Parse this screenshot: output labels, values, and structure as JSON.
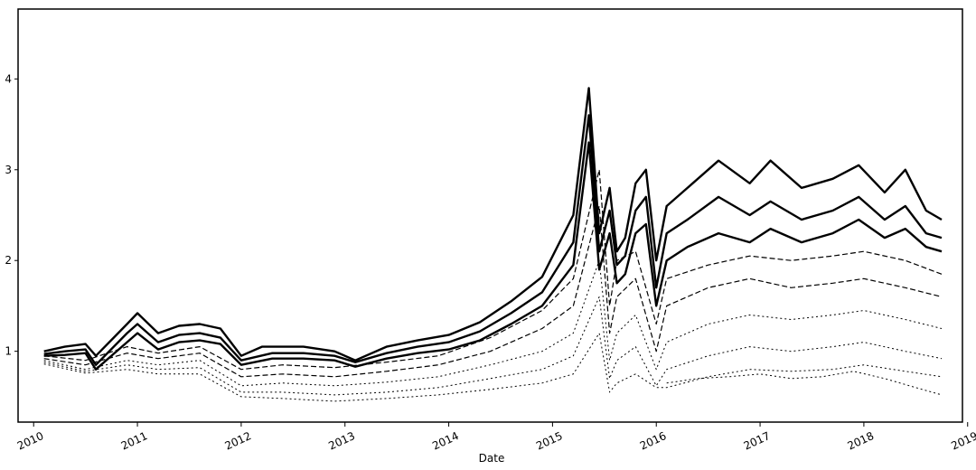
{
  "chart_data": {
    "type": "line",
    "title": "",
    "xlabel": "Date",
    "ylabel": "",
    "xlim": [
      2009.85,
      2018.95
    ],
    "ylim": [
      0.22,
      4.77
    ],
    "x_ticks": [
      "2010",
      "2011",
      "2012",
      "2013",
      "2014",
      "2015",
      "2016",
      "2017",
      "2018",
      "2019"
    ],
    "y_ticks": [
      "1",
      "2",
      "3",
      "4"
    ],
    "grid": false,
    "legend": "none",
    "line_color": "#000000",
    "series": [
      {
        "style": "bold",
        "x": [
          2010.1,
          2010.3,
          2010.5,
          2010.6,
          2010.9,
          2011.0,
          2011.2,
          2011.4,
          2011.6,
          2011.8,
          2012.0,
          2012.2,
          2012.4,
          2012.6,
          2012.9,
          2013.1,
          2013.4,
          2013.7,
          2014.0,
          2014.3,
          2014.6,
          2014.9,
          2015.2,
          2015.35,
          2015.45,
          2015.55,
          2015.62,
          2015.7,
          2015.8,
          2015.9,
          2016.0,
          2016.1,
          2016.3,
          2016.6,
          2016.9,
          2017.1,
          2017.4,
          2017.7,
          2017.95,
          2018.2,
          2018.4,
          2018.6,
          2018.75
        ],
        "values": [
          1.0,
          1.05,
          1.08,
          0.95,
          1.3,
          1.42,
          1.2,
          1.28,
          1.3,
          1.25,
          0.95,
          1.05,
          1.05,
          1.05,
          1.0,
          0.9,
          1.05,
          1.12,
          1.18,
          1.32,
          1.55,
          1.82,
          2.5,
          3.9,
          2.3,
          2.8,
          2.1,
          2.25,
          2.85,
          3.0,
          2.0,
          2.6,
          2.8,
          3.1,
          2.85,
          3.1,
          2.8,
          2.9,
          3.05,
          2.75,
          3.0,
          2.55,
          2.45
        ]
      },
      {
        "style": "bold",
        "x": [
          2010.1,
          2010.3,
          2010.5,
          2010.6,
          2010.9,
          2011.0,
          2011.2,
          2011.4,
          2011.6,
          2011.8,
          2012.0,
          2012.3,
          2012.6,
          2012.9,
          2013.1,
          2013.4,
          2013.7,
          2014.0,
          2014.3,
          2014.6,
          2014.9,
          2015.2,
          2015.35,
          2015.45,
          2015.55,
          2015.62,
          2015.7,
          2015.8,
          2015.9,
          2016.0,
          2016.1,
          2016.3,
          2016.6,
          2016.9,
          2017.1,
          2017.4,
          2017.7,
          2017.95,
          2018.2,
          2018.4,
          2018.6,
          2018.75
        ],
        "values": [
          0.97,
          1.0,
          1.02,
          0.85,
          1.2,
          1.3,
          1.1,
          1.18,
          1.2,
          1.15,
          0.9,
          0.98,
          0.98,
          0.95,
          0.88,
          0.98,
          1.05,
          1.1,
          1.22,
          1.42,
          1.65,
          2.2,
          3.6,
          2.1,
          2.55,
          1.95,
          2.05,
          2.55,
          2.7,
          1.7,
          2.3,
          2.45,
          2.7,
          2.5,
          2.65,
          2.45,
          2.55,
          2.7,
          2.45,
          2.6,
          2.3,
          2.25
        ]
      },
      {
        "style": "bold",
        "x": [
          2010.1,
          2010.3,
          2010.5,
          2010.6,
          2010.9,
          2011.0,
          2011.2,
          2011.4,
          2011.6,
          2011.8,
          2012.0,
          2012.3,
          2012.6,
          2012.9,
          2013.1,
          2013.4,
          2013.7,
          2014.0,
          2014.3,
          2014.6,
          2014.9,
          2015.2,
          2015.35,
          2015.45,
          2015.55,
          2015.62,
          2015.7,
          2015.8,
          2015.9,
          2016.0,
          2016.1,
          2016.3,
          2016.6,
          2016.9,
          2017.1,
          2017.4,
          2017.7,
          2017.95,
          2018.2,
          2018.4,
          2018.6,
          2018.75
        ],
        "values": [
          0.95,
          0.96,
          0.98,
          0.8,
          1.1,
          1.2,
          1.02,
          1.1,
          1.12,
          1.08,
          0.85,
          0.92,
          0.92,
          0.9,
          0.83,
          0.92,
          0.98,
          1.02,
          1.12,
          1.3,
          1.5,
          1.95,
          3.3,
          1.9,
          2.3,
          1.75,
          1.85,
          2.3,
          2.4,
          1.5,
          2.0,
          2.15,
          2.3,
          2.2,
          2.35,
          2.2,
          2.3,
          2.45,
          2.25,
          2.35,
          2.15,
          2.1
        ]
      },
      {
        "style": "dashed",
        "x": [
          2010.1,
          2010.5,
          2010.9,
          2011.2,
          2011.6,
          2012.0,
          2012.4,
          2012.9,
          2013.4,
          2013.9,
          2014.4,
          2014.9,
          2015.2,
          2015.45,
          2015.55,
          2015.62,
          2015.8,
          2016.0,
          2016.1,
          2016.5,
          2016.9,
          2017.3,
          2017.7,
          2018.0,
          2018.4,
          2018.75
        ],
        "values": [
          0.95,
          0.9,
          1.05,
          0.98,
          1.05,
          0.8,
          0.85,
          0.82,
          0.88,
          0.95,
          1.15,
          1.45,
          1.8,
          3.0,
          1.5,
          2.0,
          2.1,
          1.3,
          1.8,
          1.95,
          2.05,
          2.0,
          2.05,
          2.1,
          2.0,
          1.85
        ]
      },
      {
        "style": "dashed",
        "x": [
          2010.1,
          2010.5,
          2010.9,
          2011.2,
          2011.6,
          2012.0,
          2012.4,
          2012.9,
          2013.4,
          2013.9,
          2014.4,
          2014.9,
          2015.2,
          2015.45,
          2015.55,
          2015.62,
          2015.8,
          2016.0,
          2016.1,
          2016.5,
          2016.9,
          2017.3,
          2017.7,
          2018.0,
          2018.4,
          2018.75
        ],
        "values": [
          0.92,
          0.85,
          0.98,
          0.92,
          0.98,
          0.72,
          0.75,
          0.72,
          0.78,
          0.85,
          1.0,
          1.25,
          1.5,
          2.6,
          1.2,
          1.6,
          1.8,
          1.0,
          1.5,
          1.7,
          1.8,
          1.7,
          1.75,
          1.8,
          1.7,
          1.6
        ]
      },
      {
        "style": "dotted",
        "x": [
          2010.1,
          2010.5,
          2010.9,
          2011.2,
          2011.6,
          2012.0,
          2012.4,
          2012.9,
          2013.4,
          2013.9,
          2014.4,
          2014.9,
          2015.2,
          2015.45,
          2015.55,
          2015.62,
          2015.8,
          2016.0,
          2016.1,
          2016.5,
          2016.9,
          2017.3,
          2017.7,
          2018.0,
          2018.4,
          2018.75
        ],
        "values": [
          0.9,
          0.8,
          0.9,
          0.85,
          0.9,
          0.62,
          0.65,
          0.62,
          0.66,
          0.72,
          0.85,
          1.0,
          1.2,
          2.0,
          0.9,
          1.2,
          1.4,
          0.8,
          1.1,
          1.3,
          1.4,
          1.35,
          1.4,
          1.45,
          1.35,
          1.25
        ]
      },
      {
        "style": "dotted",
        "x": [
          2010.1,
          2010.5,
          2010.9,
          2011.2,
          2011.6,
          2012.0,
          2012.4,
          2012.9,
          2013.4,
          2013.9,
          2014.4,
          2014.9,
          2015.2,
          2015.45,
          2015.55,
          2015.62,
          2015.8,
          2016.0,
          2016.1,
          2016.5,
          2016.9,
          2017.3,
          2017.7,
          2018.0,
          2018.4,
          2018.75
        ],
        "values": [
          0.88,
          0.78,
          0.85,
          0.8,
          0.82,
          0.55,
          0.55,
          0.52,
          0.55,
          0.6,
          0.7,
          0.8,
          0.95,
          1.6,
          0.7,
          0.9,
          1.05,
          0.62,
          0.8,
          0.95,
          1.05,
          1.0,
          1.05,
          1.1,
          1.0,
          0.92
        ]
      },
      {
        "style": "dotted",
        "x": [
          2010.1,
          2010.5,
          2010.9,
          2011.2,
          2011.6,
          2012.0,
          2012.4,
          2012.9,
          2013.4,
          2013.9,
          2014.4,
          2014.9,
          2015.2,
          2015.45,
          2015.55,
          2015.62,
          2015.8,
          2016.0,
          2016.1,
          2016.5,
          2016.9,
          2017.3,
          2017.7,
          2018.0,
          2018.4,
          2018.75
        ],
        "values": [
          0.86,
          0.76,
          0.8,
          0.75,
          0.75,
          0.5,
          0.48,
          0.45,
          0.48,
          0.52,
          0.58,
          0.65,
          0.75,
          1.2,
          0.55,
          0.65,
          0.75,
          0.6,
          0.6,
          0.72,
          0.8,
          0.78,
          0.8,
          0.85,
          0.78,
          0.72
        ]
      },
      {
        "style": "dotted",
        "x": [
          2016.1,
          2016.4,
          2016.7,
          2017.0,
          2017.3,
          2017.6,
          2017.9,
          2018.2,
          2018.5,
          2018.75
        ],
        "values": [
          0.65,
          0.7,
          0.72,
          0.75,
          0.7,
          0.72,
          0.78,
          0.7,
          0.6,
          0.52
        ]
      }
    ]
  }
}
